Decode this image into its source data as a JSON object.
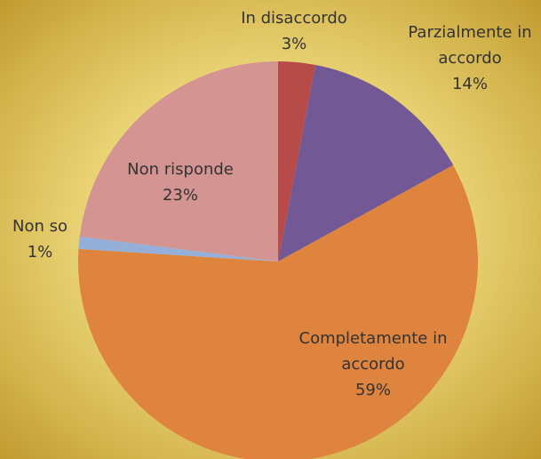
{
  "chart_data": {
    "type": "pie",
    "categories": [
      "In disaccordo",
      "Parzialmente in accordo",
      "Completamente in accordo",
      "Non so",
      "Non risponde"
    ],
    "values": [
      3,
      14,
      59,
      1,
      23
    ],
    "value_labels": [
      "3%",
      "14%",
      "59%",
      "1%",
      "23%"
    ],
    "colors": [
      "#b74b4a",
      "#725895",
      "#df843f",
      "#94afd8",
      "#d49491"
    ]
  }
}
